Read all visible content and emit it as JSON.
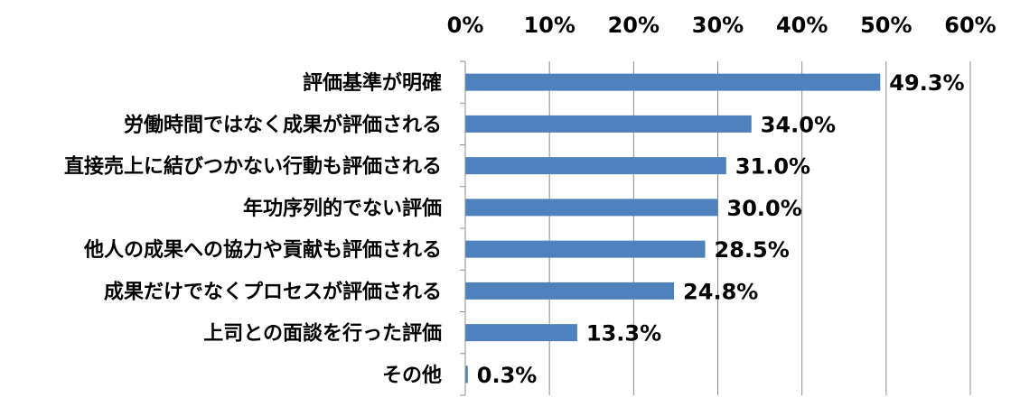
{
  "chart_data": {
    "type": "bar",
    "orientation": "horizontal",
    "categories": [
      "評価基準が明確",
      "労働時間ではなく成果が評価される",
      "直接売上に結びつかない行動も評価される",
      "年功序列的でない評価",
      "他人の成果への協力や貢献も評価される",
      "成果だけでなくプロセスが評価される",
      "上司との面談を行った評価",
      "その他"
    ],
    "values": [
      49.3,
      34.0,
      31.0,
      30.0,
      28.5,
      24.8,
      13.3,
      0.3
    ],
    "value_labels": [
      "49.3%",
      "34.0%",
      "31.0%",
      "30.0%",
      "28.5%",
      "24.8%",
      "13.3%",
      "0.3%"
    ],
    "x_ticks": [
      0,
      10,
      20,
      30,
      40,
      50,
      60
    ],
    "x_tick_labels": [
      "0%",
      "10%",
      "20%",
      "30%",
      "40%",
      "50%",
      "60%"
    ],
    "xlim": [
      0,
      60
    ],
    "axis_position": "top",
    "grid": true,
    "bar_color": "#4F81BD",
    "grid_color": "#8C8C8C"
  }
}
